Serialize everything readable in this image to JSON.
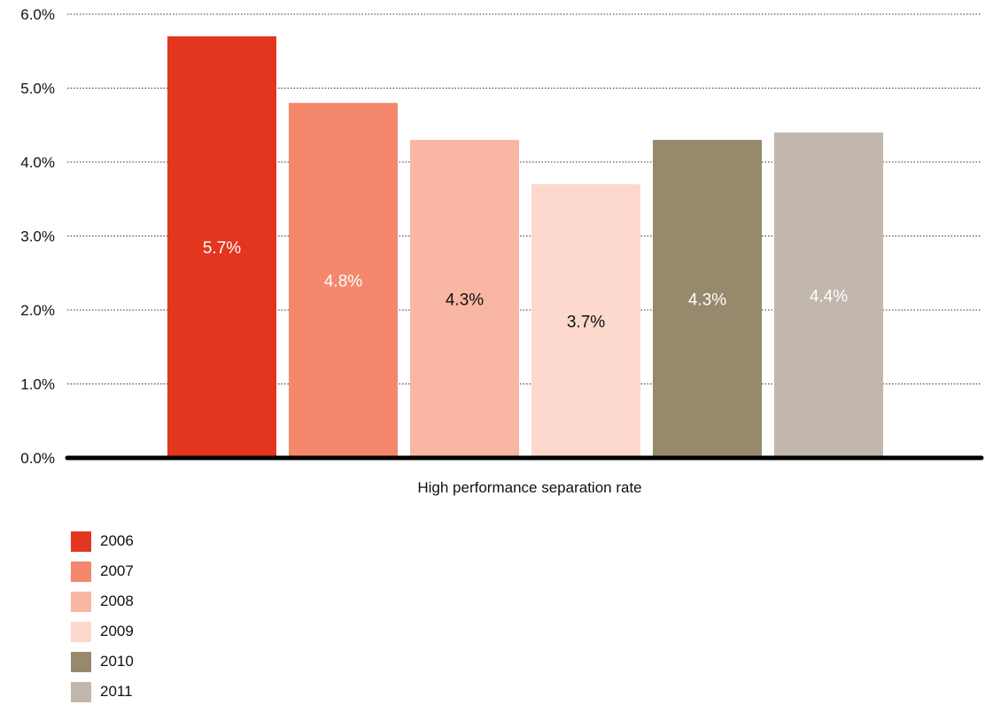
{
  "chart_data": {
    "type": "bar",
    "title": "",
    "xlabel": "High performance separation rate",
    "ylabel": "",
    "ylim": [
      0,
      6
    ],
    "y_ticks": [
      "0.0%",
      "1.0%",
      "2.0%",
      "3.0%",
      "4.0%",
      "5.0%",
      "6.0%"
    ],
    "grid": true,
    "legend_position": "bottom-left",
    "categories": [
      "High performance separation rate"
    ],
    "series": [
      {
        "name": "2006",
        "values": [
          5.7
        ],
        "label": "5.7%",
        "color": "#e2361f",
        "label_color": "#ffffff"
      },
      {
        "name": "2007",
        "values": [
          4.8
        ],
        "label": "4.8%",
        "color": "#f5876d",
        "label_color": "#ffffff"
      },
      {
        "name": "2008",
        "values": [
          4.3
        ],
        "label": "4.3%",
        "color": "#f9b6a2",
        "label_color": "#111111"
      },
      {
        "name": "2009",
        "values": [
          3.7
        ],
        "label": "3.7%",
        "color": "#fcd9cc",
        "label_color": "#111111"
      },
      {
        "name": "2010",
        "values": [
          4.3
        ],
        "label": "4.3%",
        "color": "#978a6c",
        "label_color": "#ffffff"
      },
      {
        "name": "2011",
        "values": [
          4.4
        ],
        "label": "4.4%",
        "color": "#c1b7ad",
        "label_color": "#ffffff"
      }
    ]
  }
}
